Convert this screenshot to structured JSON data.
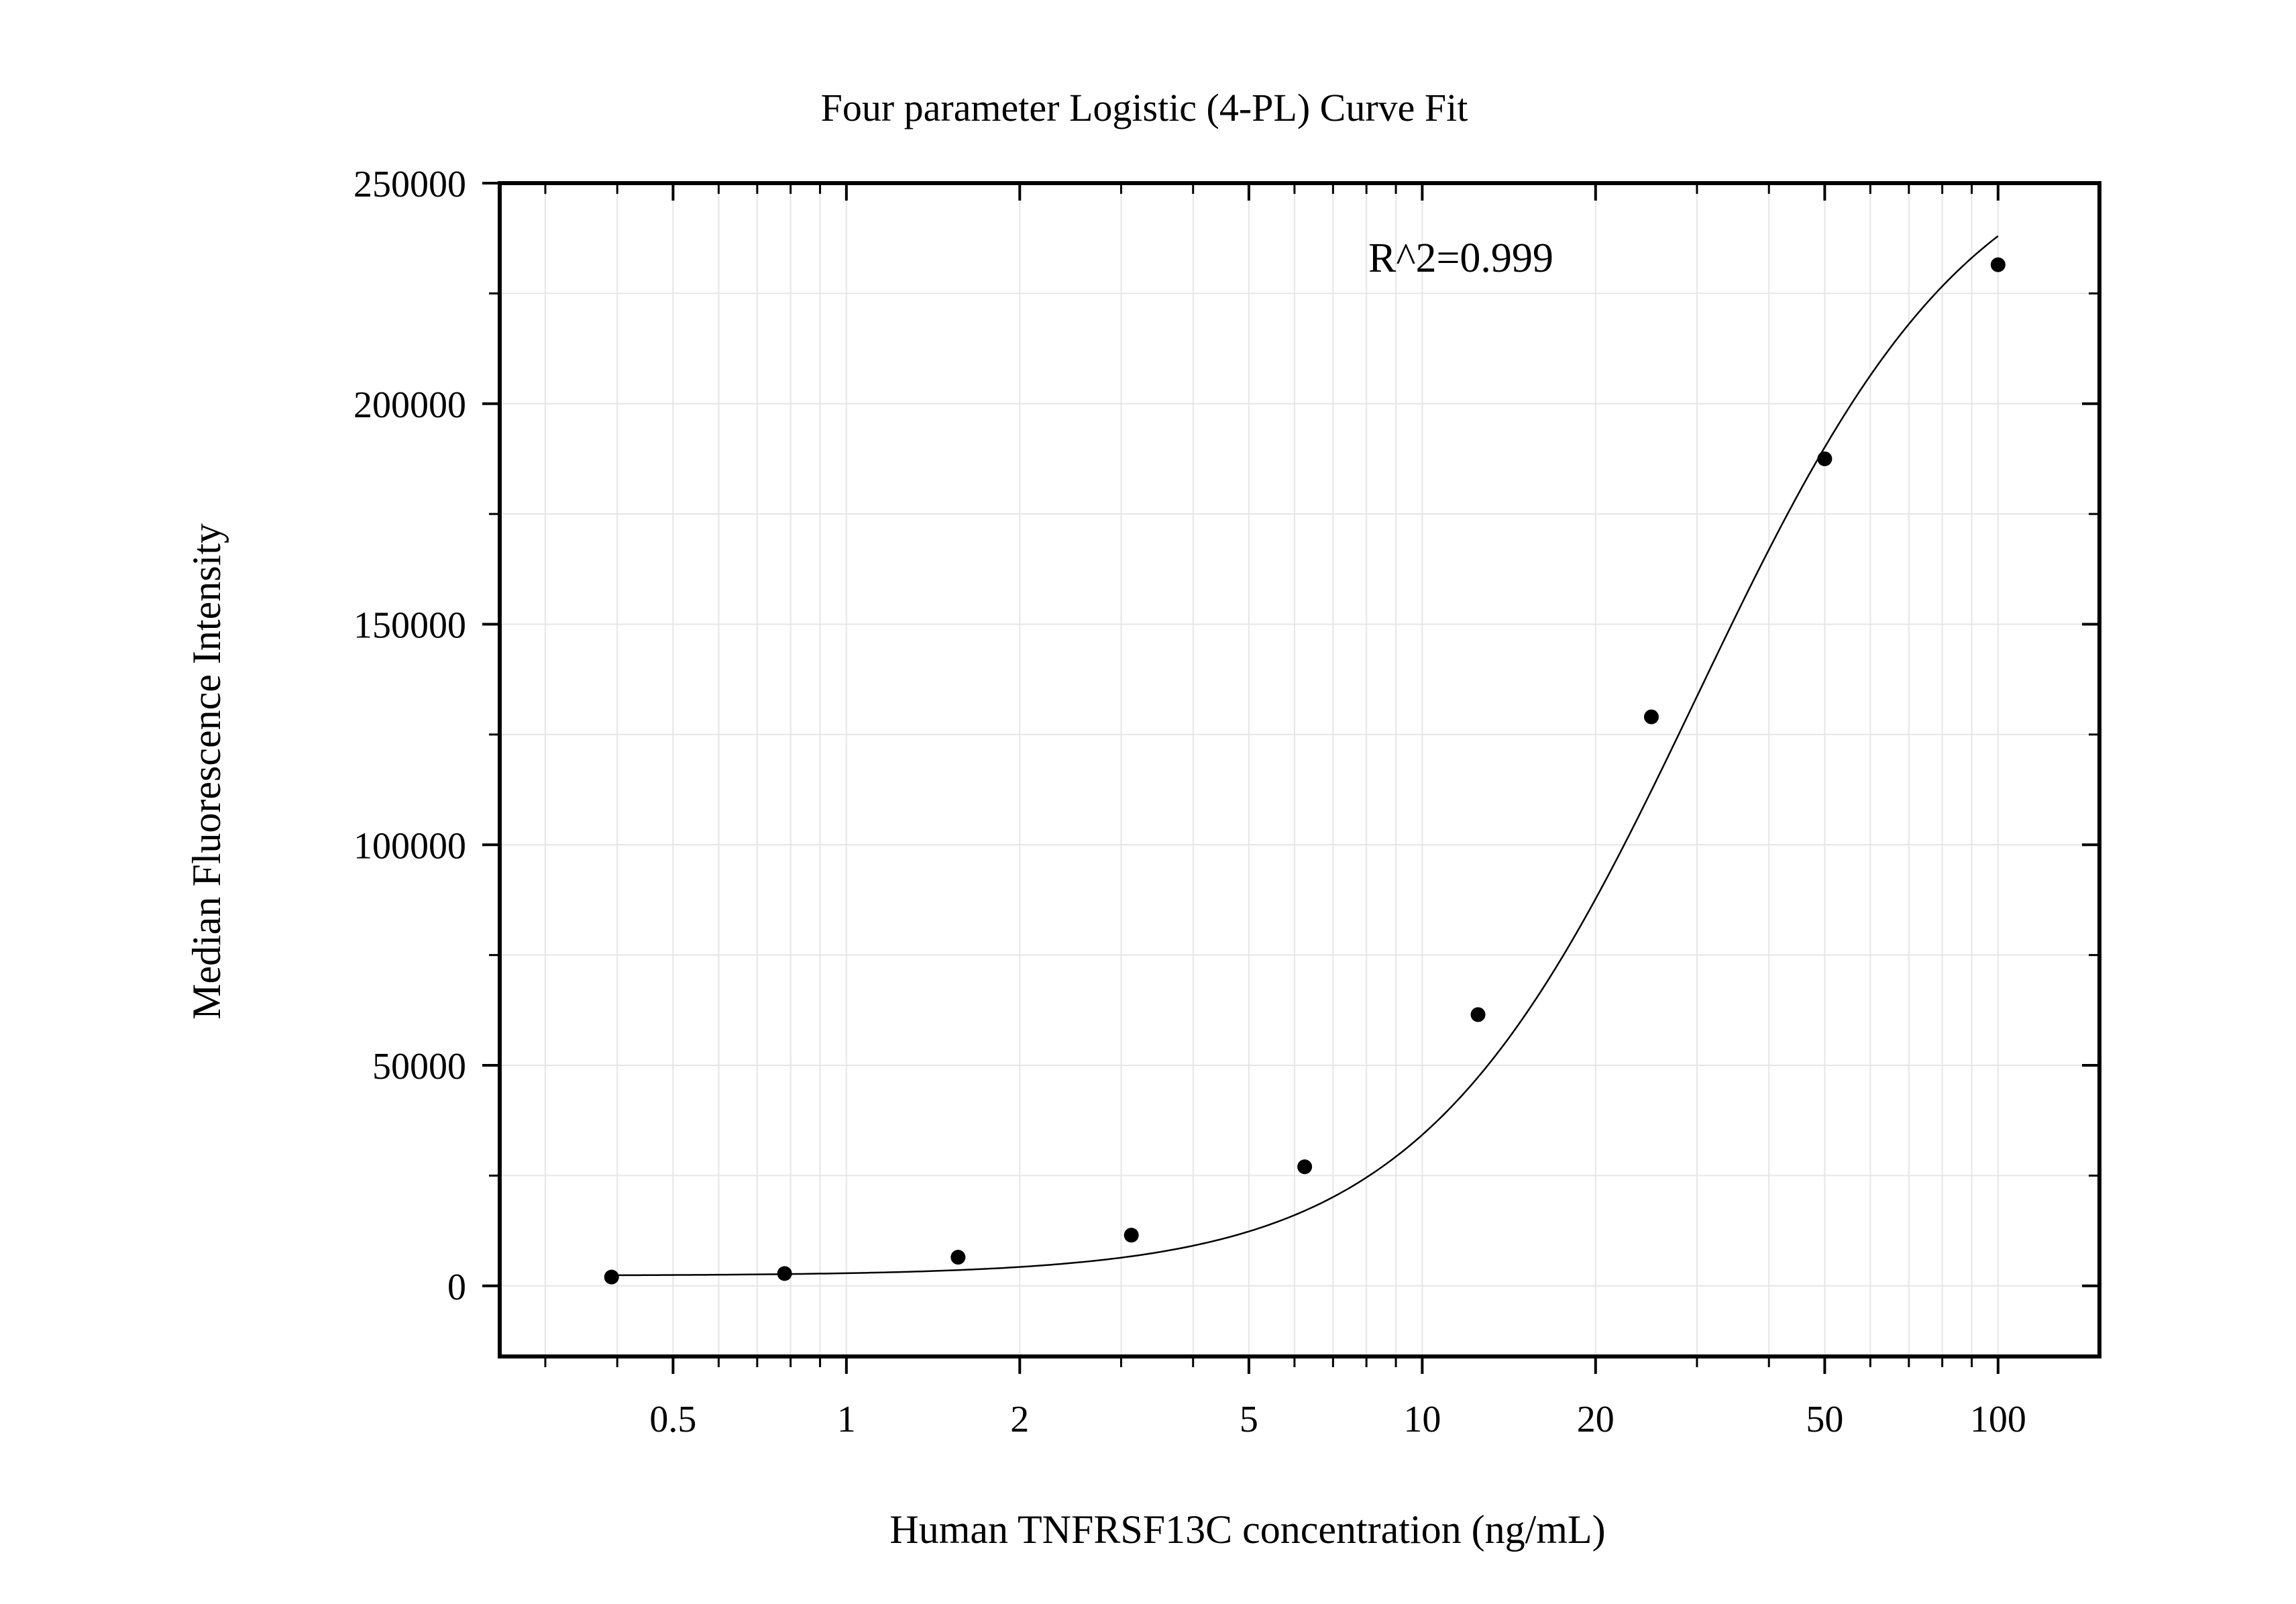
{
  "chart_data": {
    "type": "scatter",
    "title": "Four parameter Logistic (4-PL) Curve Fit",
    "xlabel": "Human TNFRSF13C concentration (ng/mL)",
    "ylabel": "Median Fluorescence Intensity",
    "x_scale": "log",
    "xlim": [
      0.25,
      150
    ],
    "ylim": [
      -16000,
      250000
    ],
    "x_ticks": [
      0.5,
      1,
      2,
      5,
      10,
      20,
      50,
      100
    ],
    "x_tick_labels": [
      "0.5",
      "1",
      "2",
      "5",
      "10",
      "20",
      "50",
      "100"
    ],
    "y_ticks": [
      0,
      50000,
      100000,
      150000,
      200000,
      250000
    ],
    "y_tick_labels": [
      "0",
      "50000",
      "100000",
      "150000",
      "200000",
      "250000"
    ],
    "grid": true,
    "annotation": "R^2=0.999",
    "series": [
      {
        "x": [
          0.391,
          0.781,
          1.563,
          3.125,
          6.25,
          12.5,
          25,
          50,
          100
        ],
        "y": [
          2000,
          2800,
          6500,
          11500,
          27000,
          61500,
          129000,
          187500,
          231500
        ]
      }
    ],
    "fit": {
      "model": "4PL",
      "x_range": [
        0.391,
        100
      ],
      "params": {
        "A": 2300,
        "B": 1.8,
        "C": 30,
        "D": 265000
      }
    },
    "colors": {
      "points": "#000000",
      "curve": "#000000",
      "grid": "#e6e6e6",
      "frame": "#000000"
    }
  }
}
